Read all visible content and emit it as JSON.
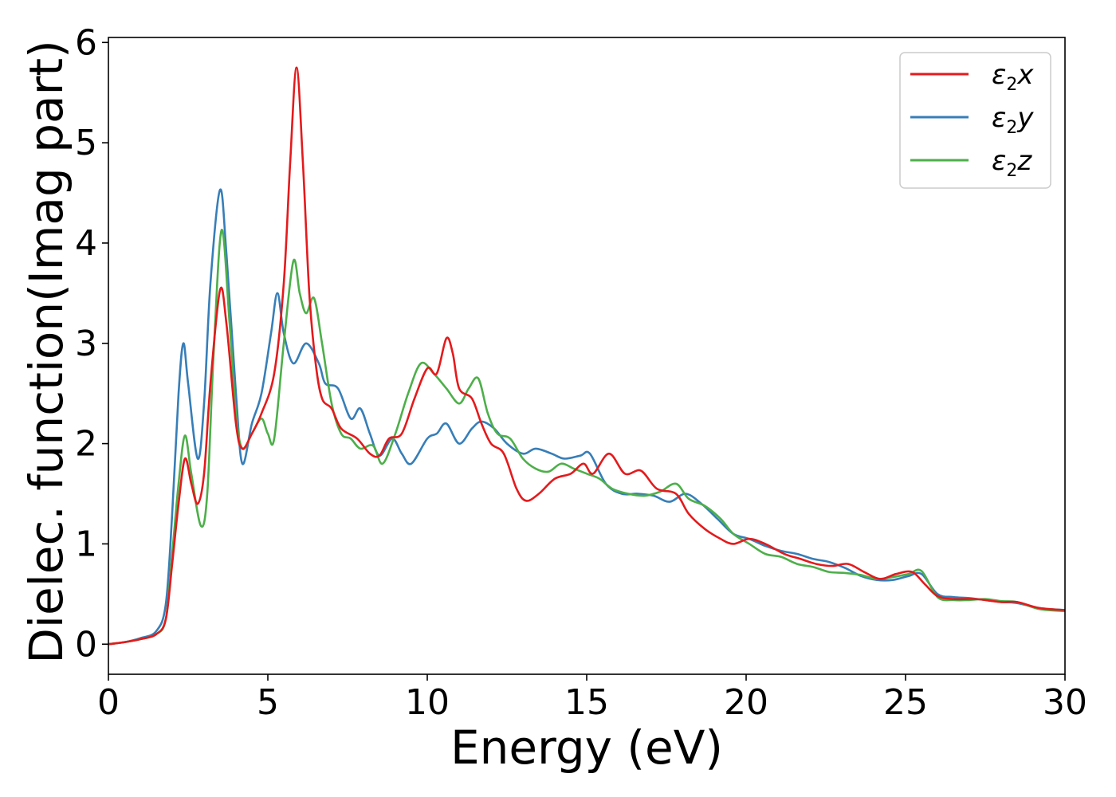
{
  "chart_data": {
    "type": "line",
    "title": "",
    "xlabel": "Energy (eV)",
    "ylabel": "Dielec. function(Imag part)",
    "xlim": [
      0,
      30
    ],
    "ylim": [
      -0.3,
      6.05
    ],
    "x_ticks": [
      "0",
      "5",
      "10",
      "15",
      "20",
      "25",
      "30"
    ],
    "y_ticks": [
      "0",
      "1",
      "2",
      "3",
      "4",
      "5",
      "6"
    ],
    "grid": false,
    "legend_position": "top-right",
    "series": [
      {
        "name": "ε2x",
        "legend": {
          "base": "ε",
          "sub": "2",
          "var": "x"
        },
        "color": "#e41a1c",
        "points": [
          [
            0,
            0
          ],
          [
            0.5,
            0.02
          ],
          [
            1.0,
            0.05
          ],
          [
            1.5,
            0.1
          ],
          [
            1.8,
            0.25
          ],
          [
            2.0,
            0.8
          ],
          [
            2.2,
            1.4
          ],
          [
            2.4,
            1.85
          ],
          [
            2.6,
            1.6
          ],
          [
            2.8,
            1.4
          ],
          [
            3.0,
            1.7
          ],
          [
            3.2,
            2.6
          ],
          [
            3.5,
            3.53
          ],
          [
            3.7,
            3.2
          ],
          [
            4.0,
            2.2
          ],
          [
            4.2,
            1.95
          ],
          [
            4.5,
            2.1
          ],
          [
            4.8,
            2.3
          ],
          [
            5.2,
            2.7
          ],
          [
            5.5,
            3.6
          ],
          [
            5.7,
            4.8
          ],
          [
            5.9,
            5.75
          ],
          [
            6.1,
            4.8
          ],
          [
            6.3,
            3.5
          ],
          [
            6.5,
            2.8
          ],
          [
            6.7,
            2.45
          ],
          [
            7.0,
            2.35
          ],
          [
            7.3,
            2.15
          ],
          [
            7.8,
            2.05
          ],
          [
            8.2,
            1.9
          ],
          [
            8.5,
            1.88
          ],
          [
            8.8,
            2.05
          ],
          [
            9.2,
            2.1
          ],
          [
            9.6,
            2.45
          ],
          [
            10.0,
            2.75
          ],
          [
            10.3,
            2.7
          ],
          [
            10.6,
            3.05
          ],
          [
            10.8,
            2.9
          ],
          [
            11.0,
            2.55
          ],
          [
            11.4,
            2.45
          ],
          [
            11.7,
            2.2
          ],
          [
            12.0,
            2.0
          ],
          [
            12.4,
            1.9
          ],
          [
            12.8,
            1.55
          ],
          [
            13.1,
            1.43
          ],
          [
            13.5,
            1.5
          ],
          [
            14.0,
            1.65
          ],
          [
            14.5,
            1.7
          ],
          [
            14.9,
            1.8
          ],
          [
            15.2,
            1.7
          ],
          [
            15.7,
            1.9
          ],
          [
            16.2,
            1.7
          ],
          [
            16.7,
            1.73
          ],
          [
            17.2,
            1.55
          ],
          [
            17.8,
            1.5
          ],
          [
            18.2,
            1.3
          ],
          [
            18.7,
            1.15
          ],
          [
            19.2,
            1.05
          ],
          [
            19.6,
            1.0
          ],
          [
            20.1,
            1.05
          ],
          [
            20.6,
            1.0
          ],
          [
            21.2,
            0.9
          ],
          [
            21.7,
            0.85
          ],
          [
            22.2,
            0.8
          ],
          [
            22.7,
            0.78
          ],
          [
            23.2,
            0.8
          ],
          [
            23.7,
            0.72
          ],
          [
            24.2,
            0.65
          ],
          [
            24.7,
            0.7
          ],
          [
            25.2,
            0.72
          ],
          [
            25.6,
            0.6
          ],
          [
            26.0,
            0.48
          ],
          [
            26.5,
            0.45
          ],
          [
            27.2,
            0.45
          ],
          [
            28.0,
            0.42
          ],
          [
            28.5,
            0.42
          ],
          [
            29.2,
            0.36
          ],
          [
            30,
            0.34
          ]
        ]
      },
      {
        "name": "ε2y",
        "legend": {
          "base": "ε",
          "sub": "2",
          "var": "y"
        },
        "color": "#377eb8",
        "points": [
          [
            0,
            0
          ],
          [
            0.5,
            0.02
          ],
          [
            1.0,
            0.06
          ],
          [
            1.5,
            0.13
          ],
          [
            1.8,
            0.4
          ],
          [
            2.0,
            1.3
          ],
          [
            2.2,
            2.5
          ],
          [
            2.35,
            3.0
          ],
          [
            2.5,
            2.6
          ],
          [
            2.8,
            1.85
          ],
          [
            3.0,
            2.4
          ],
          [
            3.2,
            3.6
          ],
          [
            3.5,
            4.53
          ],
          [
            3.7,
            3.9
          ],
          [
            4.0,
            2.5
          ],
          [
            4.2,
            1.8
          ],
          [
            4.5,
            2.2
          ],
          [
            4.8,
            2.5
          ],
          [
            5.1,
            3.1
          ],
          [
            5.3,
            3.5
          ],
          [
            5.5,
            3.1
          ],
          [
            5.8,
            2.8
          ],
          [
            6.2,
            3.0
          ],
          [
            6.6,
            2.8
          ],
          [
            6.8,
            2.6
          ],
          [
            7.2,
            2.55
          ],
          [
            7.6,
            2.25
          ],
          [
            7.9,
            2.35
          ],
          [
            8.2,
            2.1
          ],
          [
            8.5,
            1.88
          ],
          [
            8.9,
            2.05
          ],
          [
            9.2,
            1.9
          ],
          [
            9.5,
            1.8
          ],
          [
            10.0,
            2.05
          ],
          [
            10.3,
            2.1
          ],
          [
            10.6,
            2.2
          ],
          [
            11.0,
            2.0
          ],
          [
            11.4,
            2.15
          ],
          [
            11.7,
            2.22
          ],
          [
            12.1,
            2.15
          ],
          [
            12.5,
            2.0
          ],
          [
            13.0,
            1.9
          ],
          [
            13.4,
            1.95
          ],
          [
            13.9,
            1.9
          ],
          [
            14.3,
            1.85
          ],
          [
            14.8,
            1.88
          ],
          [
            15.1,
            1.9
          ],
          [
            15.6,
            1.6
          ],
          [
            16.1,
            1.5
          ],
          [
            16.6,
            1.5
          ],
          [
            17.1,
            1.48
          ],
          [
            17.6,
            1.42
          ],
          [
            18.1,
            1.5
          ],
          [
            18.6,
            1.4
          ],
          [
            19.1,
            1.25
          ],
          [
            19.6,
            1.1
          ],
          [
            20.1,
            1.05
          ],
          [
            20.6,
            0.98
          ],
          [
            21.1,
            0.93
          ],
          [
            21.6,
            0.9
          ],
          [
            22.1,
            0.85
          ],
          [
            22.6,
            0.82
          ],
          [
            23.1,
            0.76
          ],
          [
            23.6,
            0.68
          ],
          [
            24.1,
            0.64
          ],
          [
            24.6,
            0.64
          ],
          [
            25.1,
            0.68
          ],
          [
            25.5,
            0.7
          ],
          [
            26.0,
            0.5
          ],
          [
            26.5,
            0.47
          ],
          [
            27.0,
            0.46
          ],
          [
            27.5,
            0.44
          ],
          [
            28.0,
            0.42
          ],
          [
            28.5,
            0.41
          ],
          [
            29.2,
            0.36
          ],
          [
            30,
            0.34
          ]
        ]
      },
      {
        "name": "ε2z",
        "legend": {
          "base": "ε",
          "sub": "2",
          "var": "z"
        },
        "color": "#4daf4a",
        "points": [
          [
            0,
            0
          ],
          [
            0.5,
            0.02
          ],
          [
            1.0,
            0.05
          ],
          [
            1.5,
            0.1
          ],
          [
            1.8,
            0.25
          ],
          [
            2.0,
            0.9
          ],
          [
            2.2,
            1.6
          ],
          [
            2.4,
            2.08
          ],
          [
            2.6,
            1.7
          ],
          [
            2.9,
            1.18
          ],
          [
            3.1,
            1.5
          ],
          [
            3.3,
            2.9
          ],
          [
            3.55,
            4.13
          ],
          [
            3.8,
            3.2
          ],
          [
            4.0,
            2.3
          ],
          [
            4.2,
            1.95
          ],
          [
            4.5,
            2.1
          ],
          [
            4.8,
            2.25
          ],
          [
            5.0,
            2.1
          ],
          [
            5.2,
            2.05
          ],
          [
            5.5,
            3.0
          ],
          [
            5.8,
            3.82
          ],
          [
            6.0,
            3.5
          ],
          [
            6.2,
            3.3
          ],
          [
            6.45,
            3.45
          ],
          [
            6.7,
            3.0
          ],
          [
            7.0,
            2.4
          ],
          [
            7.3,
            2.1
          ],
          [
            7.6,
            2.05
          ],
          [
            7.9,
            1.95
          ],
          [
            8.3,
            1.98
          ],
          [
            8.6,
            1.8
          ],
          [
            9.0,
            2.1
          ],
          [
            9.4,
            2.5
          ],
          [
            9.8,
            2.8
          ],
          [
            10.2,
            2.7
          ],
          [
            10.6,
            2.55
          ],
          [
            11.0,
            2.4
          ],
          [
            11.3,
            2.55
          ],
          [
            11.6,
            2.65
          ],
          [
            11.9,
            2.3
          ],
          [
            12.2,
            2.1
          ],
          [
            12.6,
            2.05
          ],
          [
            13.0,
            1.85
          ],
          [
            13.4,
            1.75
          ],
          [
            13.8,
            1.72
          ],
          [
            14.2,
            1.8
          ],
          [
            14.6,
            1.75
          ],
          [
            15.0,
            1.7
          ],
          [
            15.4,
            1.65
          ],
          [
            15.8,
            1.55
          ],
          [
            16.3,
            1.5
          ],
          [
            16.8,
            1.48
          ],
          [
            17.3,
            1.52
          ],
          [
            17.8,
            1.6
          ],
          [
            18.2,
            1.45
          ],
          [
            18.7,
            1.38
          ],
          [
            19.2,
            1.25
          ],
          [
            19.6,
            1.1
          ],
          [
            20.1,
            1.0
          ],
          [
            20.6,
            0.9
          ],
          [
            21.1,
            0.87
          ],
          [
            21.6,
            0.8
          ],
          [
            22.1,
            0.77
          ],
          [
            22.6,
            0.72
          ],
          [
            23.1,
            0.71
          ],
          [
            23.6,
            0.69
          ],
          [
            24.1,
            0.65
          ],
          [
            24.6,
            0.67
          ],
          [
            25.1,
            0.7
          ],
          [
            25.5,
            0.73
          ],
          [
            26.0,
            0.47
          ],
          [
            26.5,
            0.44
          ],
          [
            27.0,
            0.44
          ],
          [
            27.5,
            0.45
          ],
          [
            28.0,
            0.43
          ],
          [
            28.5,
            0.42
          ],
          [
            29.2,
            0.35
          ],
          [
            30,
            0.33
          ]
        ]
      }
    ]
  }
}
